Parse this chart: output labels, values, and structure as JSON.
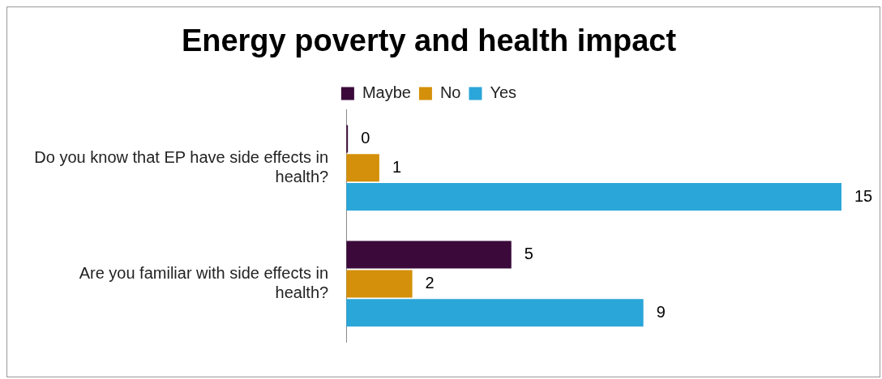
{
  "chart_data": {
    "type": "bar",
    "orientation": "horizontal",
    "title": "Energy poverty and health impact",
    "categories": [
      "Do you know that EP have side effects in health?",
      "Are you familiar with side effects in health?"
    ],
    "series": [
      {
        "name": "Maybe",
        "color": "#3b0a3a",
        "values": [
          0,
          5
        ]
      },
      {
        "name": "No",
        "color": "#d4900a",
        "values": [
          1,
          2
        ]
      },
      {
        "name": "Yes",
        "color": "#2aa6d8",
        "values": [
          15,
          9
        ]
      }
    ],
    "xlim": [
      0,
      15
    ],
    "tick_labels": "y",
    "grid": false,
    "legend": "top",
    "data_labels": true
  }
}
